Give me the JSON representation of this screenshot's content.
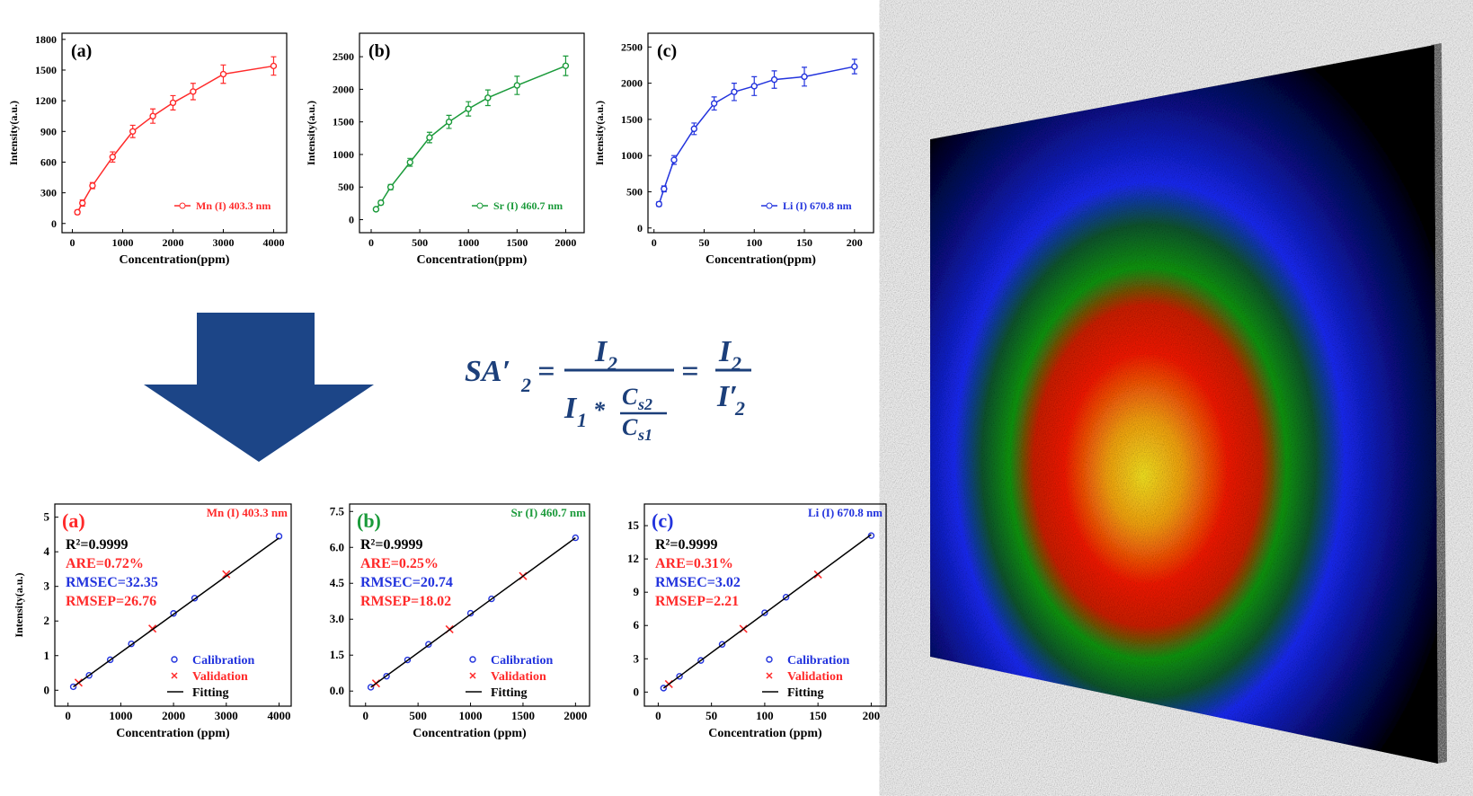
{
  "chart_data": [
    {
      "type": "line",
      "title": "(a)",
      "xlabel": "Concentration(ppm)",
      "ylabel": "Intensity(a.u.)",
      "xlim": [
        -206,
        4260
      ],
      "xticks": [
        0,
        1000,
        2000,
        3000,
        4000
      ],
      "ylim": [
        -90,
        1860
      ],
      "yticks": [
        0,
        300,
        600,
        900,
        1200,
        1500,
        1800
      ],
      "legend": "lower right",
      "series": [
        {
          "name": "Mn (I) 403.3 nm",
          "color": "#ff2a2a",
          "marker": "circle",
          "line": true,
          "x": [
            100,
            200,
            400,
            800,
            1200,
            1600,
            2000,
            2400,
            3000,
            4000
          ],
          "values": [
            110,
            200,
            370,
            650,
            900,
            1050,
            1180,
            1290,
            1460,
            1540
          ],
          "errors": [
            20,
            30,
            30,
            50,
            60,
            70,
            70,
            80,
            90,
            90
          ]
        }
      ]
    },
    {
      "type": "line",
      "title": "(b)",
      "xlabel": "Concentration(ppm)",
      "ylabel": "Intensity(a.u.)",
      "xlim": [
        -120,
        2190
      ],
      "xticks": [
        0,
        500,
        1000,
        1500,
        2000
      ],
      "ylim": [
        -200,
        2860
      ],
      "yticks": [
        0,
        500,
        1000,
        1500,
        2000,
        2500
      ],
      "legend": "lower right",
      "series": [
        {
          "name": "Sr (I) 460.7 nm",
          "color": "#1a9a3a",
          "marker": "circle",
          "line": true,
          "x": [
            50,
            100,
            200,
            400,
            600,
            800,
            1000,
            1200,
            1500,
            2000
          ],
          "values": [
            160,
            260,
            500,
            880,
            1260,
            1500,
            1700,
            1870,
            2060,
            2360
          ],
          "errors": [
            20,
            30,
            40,
            60,
            80,
            100,
            110,
            120,
            140,
            150
          ]
        }
      ]
    },
    {
      "type": "line",
      "title": "(c)",
      "xlabel": "Concentration(ppm)",
      "ylabel": "Intensity(a.u.)",
      "xlim": [
        -6,
        219
      ],
      "xticks": [
        0,
        50,
        100,
        150,
        200
      ],
      "ylim": [
        -65,
        2690
      ],
      "yticks": [
        0,
        500,
        1000,
        1500,
        2000,
        2500
      ],
      "legend": "lower right",
      "series": [
        {
          "name": "Li (I) 670.8 nm",
          "color": "#2233dd",
          "marker": "circle",
          "line": true,
          "x": [
            5,
            10,
            20,
            40,
            60,
            80,
            100,
            120,
            150,
            200
          ],
          "values": [
            330,
            540,
            940,
            1370,
            1720,
            1880,
            1960,
            2050,
            2090,
            2230
          ],
          "errors": [
            30,
            40,
            60,
            80,
            90,
            120,
            130,
            120,
            130,
            100
          ]
        }
      ]
    },
    {
      "type": "scatter",
      "title": "(a)",
      "title_color": "#ff2a2a",
      "subtitle": "Mn (I) 403.3 nm",
      "subtitle_color": "#ff2a2a",
      "xlabel": "Concentration (ppm)",
      "ylabel": "Intensity(a.u.)",
      "xlim": [
        -250,
        4230
      ],
      "xticks": [
        0,
        1000,
        2000,
        3000,
        4000
      ],
      "ylim": [
        -0.46,
        5.38
      ],
      "yticks": [
        0,
        1,
        2,
        3,
        4,
        5
      ],
      "legend": "lower right",
      "annotations": [
        {
          "text": "R²=0.9999",
          "color": "#000000"
        },
        {
          "text": "ARE=0.72%",
          "color": "#ff2a2a"
        },
        {
          "text": "RMSEC=32.35",
          "color": "#2233dd"
        },
        {
          "text": "RMSEP=26.76",
          "color": "#ff2a2a"
        }
      ],
      "series": [
        {
          "name": "Calibration",
          "color": "#2233dd",
          "marker": "circle",
          "x": [
            100,
            400,
            800,
            1200,
            2000,
            2400,
            4000
          ],
          "values": [
            0.1,
            0.43,
            0.88,
            1.34,
            2.22,
            2.66,
            4.45
          ]
        },
        {
          "name": "Validation",
          "color": "#ff2a2a",
          "marker": "x",
          "x": [
            200,
            1600,
            3000
          ],
          "values": [
            0.22,
            1.78,
            3.35
          ]
        },
        {
          "name": "Fitting",
          "color": "#000000",
          "line": true,
          "x": [
            100,
            4000
          ],
          "values": [
            0.1,
            4.4
          ]
        }
      ]
    },
    {
      "type": "scatter",
      "title": "(b)",
      "title_color": "#1a9a3a",
      "subtitle": "Sr (I) 460.7 nm",
      "subtitle_color": "#1a9a3a",
      "xlabel": "Concentration (ppm)",
      "xlim": [
        -152,
        2134
      ],
      "xticks": [
        0,
        500,
        1000,
        1500,
        2000
      ],
      "ylim": [
        -0.63,
        7.81
      ],
      "yticks": [
        {
          "value": 0,
          "label": "0.0"
        },
        1.5,
        {
          "value": 3,
          "label": "3.0"
        },
        4.5,
        {
          "value": 6,
          "label": "6.0"
        },
        7.5
      ],
      "legend": "lower right",
      "annotations": [
        {
          "text": "R²=0.9999",
          "color": "#000000"
        },
        {
          "text": "ARE=0.25%",
          "color": "#ff2a2a"
        },
        {
          "text": "RMSEC=20.74",
          "color": "#2233dd"
        },
        {
          "text": "RMSEP=18.02",
          "color": "#ff2a2a"
        }
      ],
      "series": [
        {
          "name": "Calibration",
          "color": "#2233dd",
          "marker": "circle",
          "x": [
            50,
            200,
            400,
            600,
            1000,
            1200,
            2000
          ],
          "values": [
            0.16,
            0.62,
            1.3,
            1.95,
            3.25,
            3.85,
            6.4
          ]
        },
        {
          "name": "Validation",
          "color": "#ff2a2a",
          "marker": "x",
          "x": [
            100,
            800,
            1500
          ],
          "values": [
            0.32,
            2.58,
            4.8
          ]
        },
        {
          "name": "Fitting",
          "color": "#000000",
          "line": true,
          "x": [
            50,
            2000
          ],
          "values": [
            0.16,
            6.4
          ]
        }
      ]
    },
    {
      "type": "scatter",
      "title": "(c)",
      "title_color": "#2233dd",
      "subtitle": "Li (I) 670.8 nm",
      "subtitle_color": "#2233dd",
      "xlabel": "Concentration (ppm)",
      "xlim": [
        -13,
        214
      ],
      "xticks": [
        0,
        50,
        100,
        150,
        200
      ],
      "ylim": [
        -1.27,
        16.95
      ],
      "yticks": [
        0,
        3,
        6,
        9,
        12,
        15
      ],
      "legend": "lower right",
      "annotations": [
        {
          "text": "R²=0.9999",
          "color": "#000000"
        },
        {
          "text": "ARE=0.31%",
          "color": "#ff2a2a"
        },
        {
          "text": "RMSEC=3.02",
          "color": "#2233dd"
        },
        {
          "text": "RMSEP=2.21",
          "color": "#ff2a2a"
        }
      ],
      "series": [
        {
          "name": "Calibration",
          "color": "#2233dd",
          "marker": "circle",
          "x": [
            5,
            20,
            40,
            60,
            100,
            120,
            200
          ],
          "values": [
            0.36,
            1.42,
            2.85,
            4.3,
            7.15,
            8.55,
            14.1
          ]
        },
        {
          "name": "Validation",
          "color": "#ff2a2a",
          "marker": "x",
          "x": [
            10,
            80,
            150
          ],
          "values": [
            0.72,
            5.7,
            10.6
          ]
        },
        {
          "name": "Fitting",
          "color": "#000000",
          "line": true,
          "x": [
            5,
            200
          ],
          "values": [
            0.36,
            14.2
          ]
        }
      ]
    }
  ],
  "equation": {
    "lhs": "SA′",
    "lhs_sub": "2",
    "equals": "=",
    "num": "I",
    "num_sub": "2",
    "den": "I",
    "den_sub": "1",
    "times": "*",
    "cs2": "C",
    "cs2_sub": "s2",
    "cs1": "C",
    "cs1_sub": "s1",
    "rhs_num": "I",
    "rhs_num_sub": "2",
    "rhs_den": "I′",
    "rhs_den_sub": "2"
  }
}
